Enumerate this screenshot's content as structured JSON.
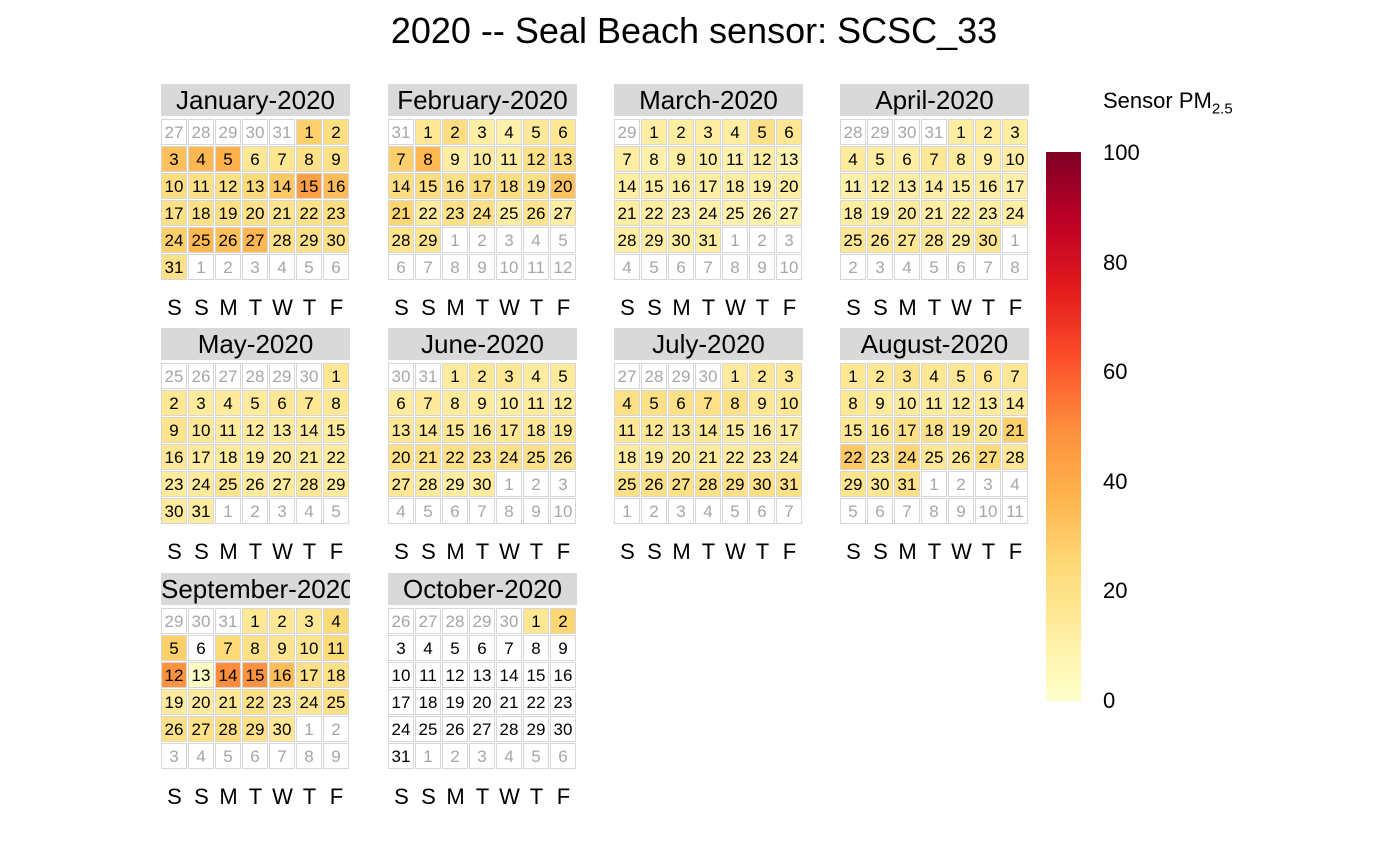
{
  "title": "2020 -- Seal Beach sensor: SCSC_33",
  "legend": {
    "title_main": "Sensor PM",
    "title_sub": "2.5",
    "ticks": [
      "0",
      "20",
      "40",
      "60",
      "80",
      "100"
    ]
  },
  "weekday_labels": [
    "S",
    "S",
    "M",
    "T",
    "W",
    "T",
    "F"
  ],
  "colors": {
    "scale": [
      "#ffffcc",
      "#ffeda0",
      "#fed976",
      "#feb24c",
      "#fd8d3c",
      "#fc4e2a",
      "#e31a1c",
      "#bd0026",
      "#800026"
    ],
    "out_of_month_text": "#a6a6a6",
    "strip": "#d9d9d9"
  },
  "chart_data": {
    "type": "heatmap",
    "title": "2020 -- Seal Beach sensor: SCSC_33",
    "year": 2020,
    "week_start": "Saturday",
    "value_label": "Sensor PM2.5",
    "scale_range": [
      0,
      100
    ],
    "months": [
      {
        "label": "January-2020",
        "days": 31,
        "first_col": 5,
        "values": [
          28,
          22,
          33,
          36,
          38,
          16,
          17,
          20,
          20,
          22,
          20,
          20,
          24,
          30,
          44,
          34,
          20,
          20,
          20,
          20,
          18,
          20,
          22,
          28,
          36,
          33,
          36,
          20,
          20,
          20,
          20
        ]
      },
      {
        "label": "February-2020",
        "days": 29,
        "first_col": 1,
        "values": [
          16,
          22,
          12,
          10,
          15,
          16,
          28,
          36,
          12,
          14,
          12,
          20,
          22,
          22,
          22,
          20,
          24,
          22,
          20,
          32,
          26,
          14,
          20,
          20,
          12,
          18,
          12,
          18,
          18
        ]
      },
      {
        "label": "March-2020",
        "days": 31,
        "first_col": 1,
        "values": [
          12,
          12,
          12,
          12,
          20,
          16,
          12,
          10,
          12,
          12,
          10,
          12,
          8,
          12,
          12,
          12,
          12,
          12,
          12,
          12,
          12,
          12,
          10,
          10,
          10,
          10,
          8,
          12,
          12,
          12,
          12
        ]
      },
      {
        "label": "April-2020",
        "days": 30,
        "first_col": 4,
        "values": [
          12,
          12,
          12,
          14,
          12,
          12,
          16,
          14,
          12,
          12,
          10,
          12,
          12,
          12,
          12,
          12,
          10,
          12,
          12,
          14,
          12,
          12,
          12,
          12,
          16,
          16,
          16,
          16,
          12,
          18
        ]
      },
      {
        "label": "May-2020",
        "days": 31,
        "first_col": 6,
        "values": [
          16,
          16,
          14,
          14,
          14,
          16,
          16,
          16,
          18,
          16,
          14,
          14,
          14,
          14,
          14,
          16,
          14,
          14,
          14,
          14,
          14,
          14,
          14,
          14,
          18,
          14,
          14,
          16,
          14,
          14,
          14
        ]
      },
      {
        "label": "June-2020",
        "days": 30,
        "first_col": 2,
        "values": [
          14,
          16,
          16,
          14,
          14,
          14,
          14,
          14,
          14,
          12,
          14,
          14,
          16,
          16,
          16,
          16,
          16,
          16,
          16,
          20,
          20,
          20,
          20,
          20,
          20,
          18,
          16,
          14,
          12,
          14
        ]
      },
      {
        "label": "July-2020",
        "days": 31,
        "first_col": 4,
        "values": [
          14,
          16,
          16,
          20,
          20,
          20,
          20,
          20,
          16,
          16,
          16,
          16,
          16,
          16,
          14,
          14,
          14,
          14,
          14,
          14,
          14,
          14,
          14,
          14,
          20,
          20,
          20,
          20,
          20,
          20,
          20
        ]
      },
      {
        "label": "August-2020",
        "days": 31,
        "first_col": 0,
        "values": [
          16,
          16,
          18,
          16,
          16,
          16,
          16,
          16,
          14,
          14,
          14,
          14,
          14,
          14,
          16,
          16,
          20,
          20,
          18,
          16,
          28,
          30,
          18,
          26,
          16,
          16,
          24,
          16,
          18,
          16,
          20
        ]
      },
      {
        "label": "September-2020",
        "days": 30,
        "first_col": 3,
        "values": [
          16,
          16,
          16,
          24,
          28,
          0,
          24,
          20,
          18,
          18,
          24,
          48,
          2,
          50,
          48,
          34,
          20,
          20,
          14,
          14,
          16,
          20,
          16,
          16,
          20,
          20,
          20,
          22,
          20,
          16
        ]
      },
      {
        "label": "October-2020",
        "days": 31,
        "first_col": 5,
        "values": [
          16,
          26,
          0,
          0,
          0,
          0,
          0,
          0,
          0,
          0,
          0,
          0,
          0,
          0,
          0,
          0,
          0,
          0,
          0,
          0,
          0,
          0,
          0,
          0,
          0,
          0,
          0,
          0,
          0,
          0,
          0
        ]
      }
    ]
  }
}
